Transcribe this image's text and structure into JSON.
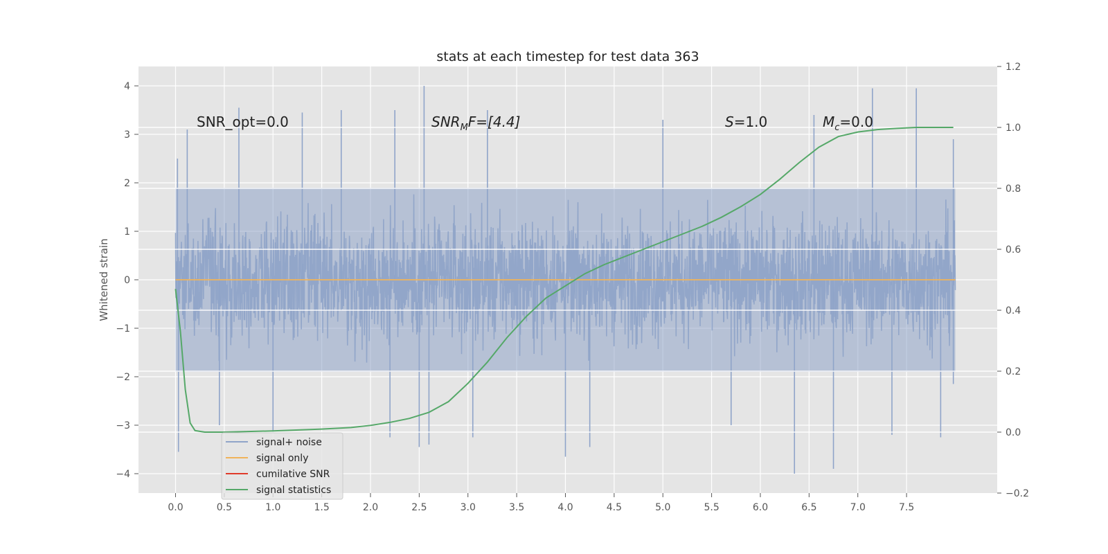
{
  "chart_data": {
    "type": "line",
    "title": "stats at each timestep for test data 363",
    "ylabel": "Whitened strain",
    "y2label": "",
    "xlim": [
      -0.38,
      8.43
    ],
    "ylim": [
      -4.4,
      4.4
    ],
    "y2lim": [
      -0.2,
      1.2
    ],
    "x_ticks": [
      0.0,
      0.5,
      1.0,
      1.5,
      2.0,
      2.5,
      3.0,
      3.5,
      4.0,
      4.5,
      5.0,
      5.5,
      6.0,
      6.5,
      7.0,
      7.5
    ],
    "x_tick_labels": [
      "0.0",
      "0.5",
      "1.0",
      "1.5",
      "2.0",
      "2.5",
      "3.0",
      "3.5",
      "4.0",
      "4.5",
      "5.0",
      "5.5",
      "6.0",
      "6.5",
      "7.0",
      "7.5"
    ],
    "y_ticks": [
      4,
      3,
      2,
      1,
      0,
      -1,
      -2,
      -3,
      -4
    ],
    "y_tick_labels": [
      "4",
      "3",
      "2",
      "1",
      "0",
      "−1",
      "−2",
      "−3",
      "−4"
    ],
    "y2_ticks": [
      1.2,
      1.0,
      0.8,
      0.6,
      0.4,
      0.2,
      0.0,
      -0.2
    ],
    "y2_tick_labels": [
      "1.2",
      "1.0",
      "0.8",
      "0.6",
      "0.4",
      "0.2",
      "0.0",
      "−0.2"
    ],
    "grid": true,
    "legend_position": "lower-left",
    "colors": {
      "noise": "#8fa4c9",
      "signal": "#f0b35a",
      "snr": "#e03a2a",
      "stats": "#55a868",
      "background": "#e5e5e5",
      "grid": "#ffffff"
    },
    "annotations": {
      "snr_opt": "SNR_opt=0.0",
      "snr_mf_main": "SNR",
      "snr_mf_sub": "M",
      "snr_mf_rest": "F=[4.4]",
      "s_label": "S",
      "s_value": "=1.0",
      "mc_main": "M",
      "mc_sub": "c",
      "mc_value": "=0.0"
    },
    "legend": [
      {
        "label": "signal+ noise",
        "key": "noise"
      },
      {
        "label": "signal only",
        "key": "signal"
      },
      {
        "label": "cumilative SNR",
        "key": "snr"
      },
      {
        "label": "signal statistics",
        "key": "stats"
      }
    ],
    "series": [
      {
        "name": "signal+ noise",
        "axis": "left",
        "kind": "dense-noise",
        "x_range": [
          0.0,
          8.0
        ],
        "typical_min": -2.0,
        "typical_max": 2.0,
        "peaks": [
          [
            0.02,
            2.5
          ],
          [
            0.12,
            3.1
          ],
          [
            0.65,
            3.55
          ],
          [
            1.3,
            3.45
          ],
          [
            1.7,
            3.5
          ],
          [
            2.25,
            3.5
          ],
          [
            2.55,
            4.0
          ],
          [
            3.2,
            3.5
          ],
          [
            5.0,
            3.3
          ],
          [
            6.55,
            3.4
          ],
          [
            7.15,
            3.95
          ],
          [
            7.6,
            3.95
          ],
          [
            7.98,
            2.9
          ]
        ],
        "troughs": [
          [
            0.03,
            -3.55
          ],
          [
            0.45,
            -3.0
          ],
          [
            1.0,
            -3.15
          ],
          [
            2.2,
            -3.25
          ],
          [
            2.5,
            -3.45
          ],
          [
            2.6,
            -3.4
          ],
          [
            3.05,
            -3.25
          ],
          [
            4.0,
            -3.65
          ],
          [
            4.25,
            -3.45
          ],
          [
            5.7,
            -3.0
          ],
          [
            6.35,
            -4.0
          ],
          [
            6.75,
            -3.9
          ],
          [
            7.35,
            -3.2
          ],
          [
            7.85,
            -3.25
          ],
          [
            7.98,
            -2.15
          ]
        ]
      },
      {
        "name": "signal only",
        "axis": "left",
        "x": [
          0.0,
          8.0
        ],
        "y": [
          0.0,
          0.0
        ]
      },
      {
        "name": "signal statistics",
        "axis": "right",
        "x": [
          0.0,
          0.05,
          0.1,
          0.15,
          0.2,
          0.3,
          0.5,
          1.0,
          1.5,
          1.8,
          2.0,
          2.2,
          2.4,
          2.6,
          2.8,
          3.0,
          3.2,
          3.4,
          3.6,
          3.8,
          4.0,
          4.2,
          4.4,
          4.6,
          4.8,
          5.0,
          5.2,
          5.4,
          5.6,
          5.8,
          6.0,
          6.2,
          6.4,
          6.6,
          6.8,
          7.0,
          7.2,
          7.4,
          7.6,
          7.8,
          7.98
        ],
        "y": [
          0.47,
          0.33,
          0.14,
          0.03,
          0.005,
          0.0,
          0.0,
          0.004,
          0.01,
          0.015,
          0.022,
          0.032,
          0.045,
          0.065,
          0.1,
          0.16,
          0.23,
          0.31,
          0.38,
          0.44,
          0.48,
          0.52,
          0.55,
          0.575,
          0.6,
          0.625,
          0.65,
          0.675,
          0.705,
          0.74,
          0.78,
          0.83,
          0.885,
          0.935,
          0.97,
          0.985,
          0.993,
          0.997,
          1.0,
          1.0,
          1.0
        ]
      }
    ]
  }
}
